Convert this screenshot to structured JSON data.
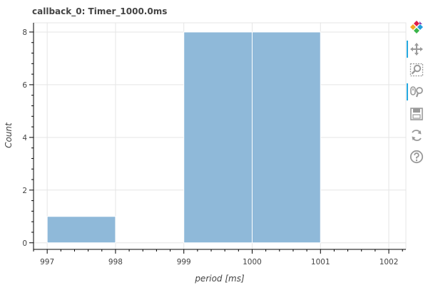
{
  "chart_data": {
    "type": "bar",
    "title": "callback_0: Timer_1000.0ms",
    "xlabel": "period [ms]",
    "ylabel": "Count",
    "xlim": [
      996.8,
      1002.25
    ],
    "ylim": [
      -0.25,
      8.35
    ],
    "x_ticks": [
      997,
      998,
      999,
      1000,
      1001,
      1002
    ],
    "y_ticks": [
      0,
      2,
      4,
      6,
      8
    ],
    "bins": [
      {
        "x0": 997,
        "x1": 998,
        "count": 1
      },
      {
        "x0": 998,
        "x1": 999,
        "count": 0
      },
      {
        "x0": 999,
        "x1": 1000,
        "count": 8
      },
      {
        "x0": 1000,
        "x1": 1001,
        "count": 8
      }
    ],
    "bar_color": "#8fb9d9",
    "grid": true,
    "legend": "none"
  },
  "toolbar": {
    "tools": [
      {
        "name": "bokeh-logo-icon",
        "active": false
      },
      {
        "name": "pan-icon",
        "active": true
      },
      {
        "name": "box-zoom-icon",
        "active": false
      },
      {
        "name": "wheel-zoom-icon",
        "active": true
      },
      {
        "name": "save-icon",
        "active": false
      },
      {
        "name": "reset-icon",
        "active": false
      },
      {
        "name": "help-icon",
        "active": false
      }
    ],
    "accent": "#26aae1"
  }
}
